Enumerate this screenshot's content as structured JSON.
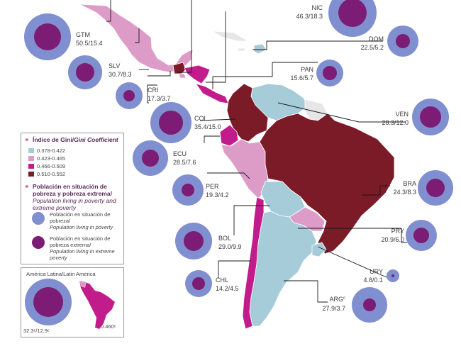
{
  "legend": {
    "gini_title_es": "Índice de Gini/",
    "gini_title_en": "Gini Coefficient",
    "gini_ranges": [
      {
        "label": "0.378-0.422",
        "color": "#a6ccd9"
      },
      {
        "label": "0.423-0.465",
        "color": "#dd9cc8"
      },
      {
        "label": "0.466-0.509",
        "color": "#c21c8c"
      },
      {
        "label": "0.510-0.552",
        "color": "#7b1b28"
      }
    ],
    "poverty_title_es": "Población en situación de pobreza y pobreza extrema/",
    "poverty_title_en": "Population living in poverty and extreme poverty",
    "poverty_item_es": "Población en situación de pobreza/",
    "poverty_item_en": "Population living in poverty",
    "extreme_item_es": "Población en situación de pobreza extrema/",
    "extreme_item_en": "Population living in extreme poverty",
    "poverty_color": "#7f8fd0",
    "extreme_color": "#7c1c74"
  },
  "inset": {
    "title": "América Latina/Latin America",
    "poverty_label": "32.3ᶜ/12.9ᶜ",
    "gini_label": "0.460ᶜ"
  },
  "countries": [
    {
      "code": "GTM",
      "value": "50.5/15.4"
    },
    {
      "code": "SLV",
      "value": "30.7/8.3"
    },
    {
      "code": "CRI",
      "value": "17.3/3.7"
    },
    {
      "code": "NIC",
      "value": "46.3/18.3"
    },
    {
      "code": "DOM",
      "value": "22.5/5.2"
    },
    {
      "code": "PAN",
      "value": "15.6/5.7"
    },
    {
      "code": "COL",
      "value": "35.4/15.0"
    },
    {
      "code": "VEN",
      "value": "28.3/12.0"
    },
    {
      "code": "ECU",
      "value": "28.5/7.6"
    },
    {
      "code": "PER",
      "value": "19.3/4.2"
    },
    {
      "code": "BRA",
      "value": "24.3/8.3"
    },
    {
      "code": "BOL",
      "value": "29.0/9.9"
    },
    {
      "code": "PRY",
      "value": "20.9/6.0"
    },
    {
      "code": "URY",
      "value": "4.8/0.1"
    },
    {
      "code": "CHL",
      "value": "14.2/4.5"
    },
    {
      "code": "ARG",
      "value": "27.9/3.7",
      "suffix": "c"
    }
  ]
}
